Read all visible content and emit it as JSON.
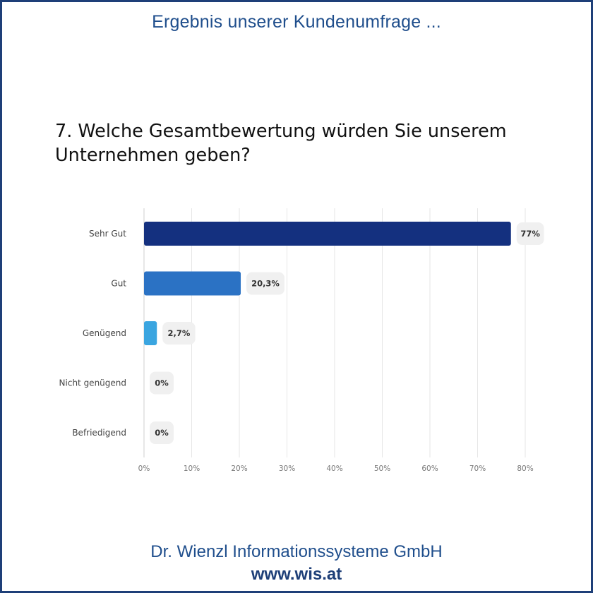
{
  "header": {
    "title": "Ergebnis unserer Kundenumfrage ..."
  },
  "question": {
    "text": "7. Welche Gesamtbewertung würden Sie unserem Unternehmen geben?"
  },
  "chart_data": {
    "type": "bar",
    "orientation": "horizontal",
    "categories": [
      "Sehr Gut",
      "Gut",
      "Genügend",
      "Nicht genügend",
      "Befriedigend"
    ],
    "values": [
      77,
      20.3,
      2.7,
      0,
      0
    ],
    "value_labels": [
      "77%",
      "20,3%",
      "2,7%",
      "0%",
      "0%"
    ],
    "colors": [
      "#14307f",
      "#2b72c4",
      "#3aa5e0",
      "#3aa5e0",
      "#3aa5e0"
    ],
    "xlim": [
      0,
      80
    ],
    "xticks": [
      0,
      10,
      20,
      30,
      40,
      50,
      60,
      70,
      80
    ],
    "xtick_labels": [
      "0%",
      "10%",
      "20%",
      "30%",
      "40%",
      "50%",
      "60%",
      "70%",
      "80%"
    ],
    "grid": true,
    "title": "",
    "xlabel": "",
    "ylabel": ""
  },
  "footer": {
    "company": "Dr. Wienzl Informationssysteme GmbH",
    "url": "www.wis.at"
  }
}
